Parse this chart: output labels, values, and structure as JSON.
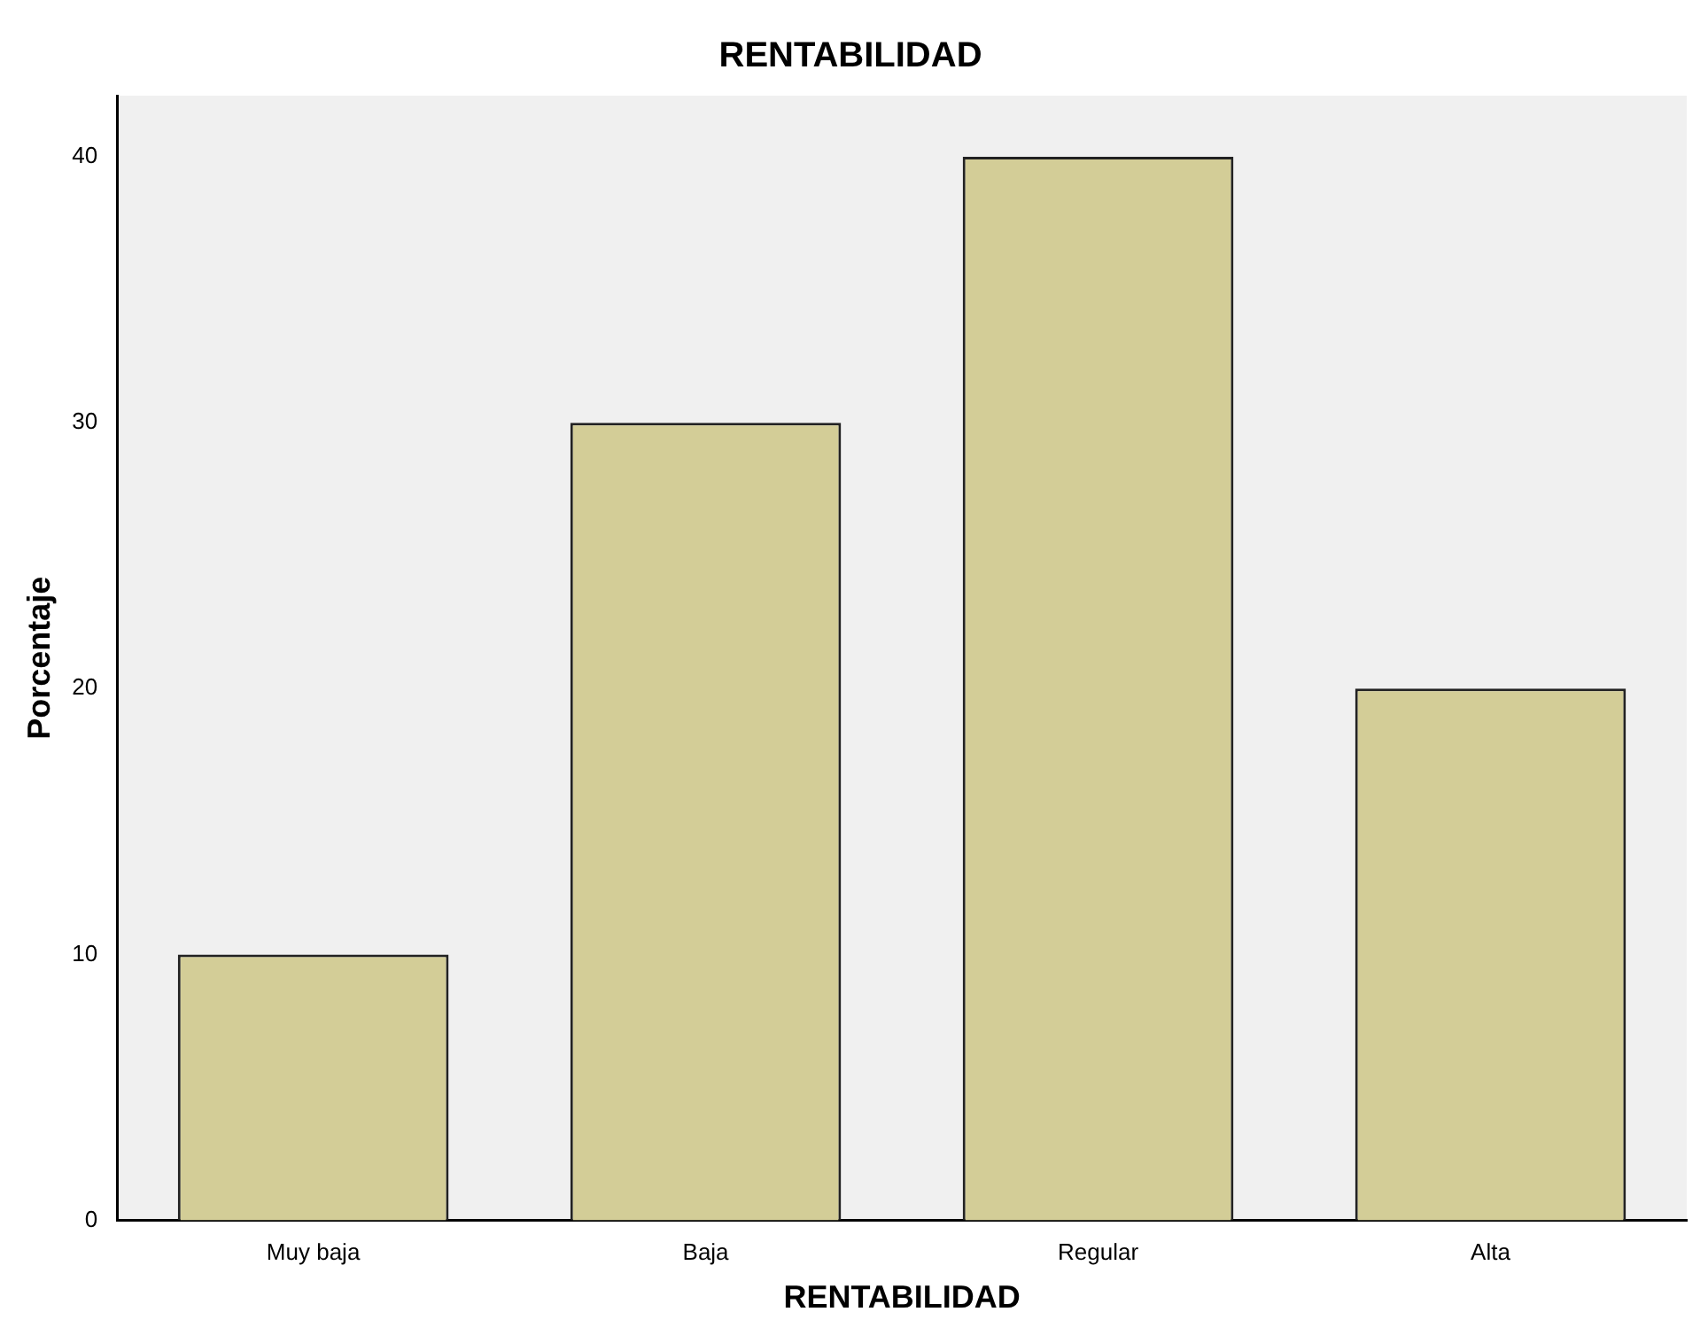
{
  "chart_data": {
    "type": "bar",
    "title": "RENTABILIDAD",
    "xlabel": "RENTABILIDAD",
    "ylabel": "Porcentaje",
    "categories": [
      "Muy baja",
      "Baja",
      "Regular",
      "Alta"
    ],
    "values": [
      10,
      30,
      40,
      20
    ],
    "color": "#d3cd97",
    "ylim": [
      0,
      42.3
    ],
    "yticks": [
      0,
      10,
      20,
      30,
      40
    ],
    "grid": false,
    "legend": false
  }
}
